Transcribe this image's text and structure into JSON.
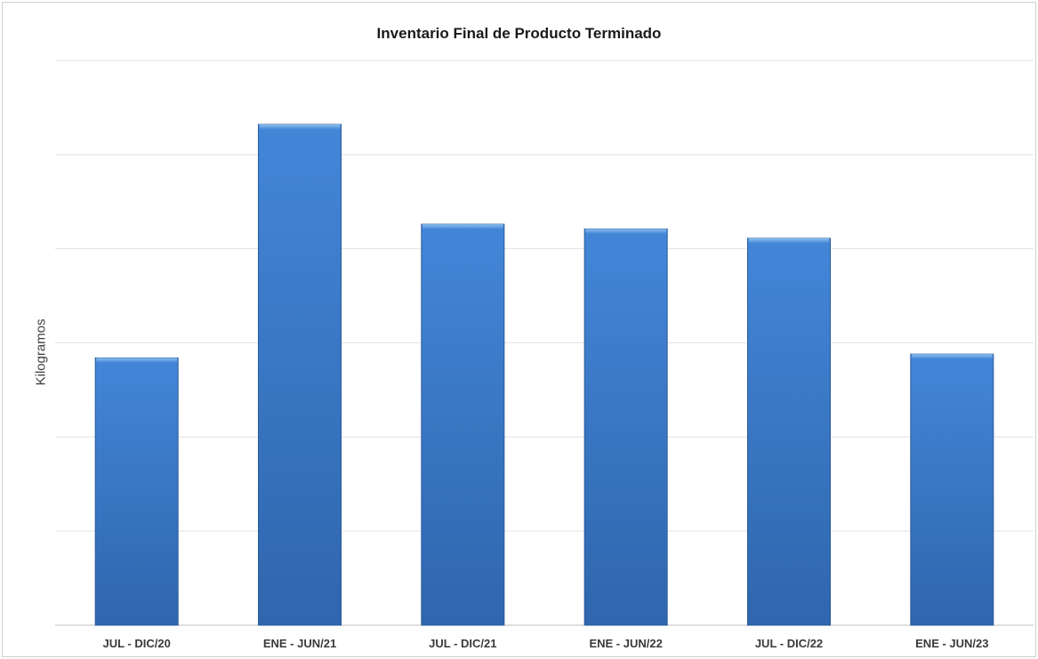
{
  "chart_data": {
    "type": "bar",
    "title": "Inventario Final de Producto Terminado",
    "xlabel": "",
    "ylabel": "Kilogramos",
    "categories": [
      "JUL - DIC/20",
      "ENE - JUN/21",
      "JUL - DIC/21",
      "ENE - JUN/22",
      "JUL - DIC/22",
      "ENE - JUN/23"
    ],
    "values": [
      2.84,
      5.32,
      4.26,
      4.21,
      4.11,
      2.88
    ],
    "ylim": [
      0,
      6
    ],
    "gridlines": true,
    "y_tick_labels_visible": false,
    "bar_color": "#3a78c8"
  }
}
